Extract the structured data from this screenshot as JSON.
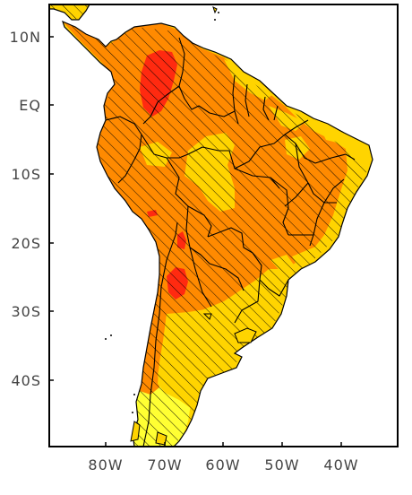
{
  "map": {
    "lat_labels": [
      "10N",
      "EQ",
      "10S",
      "20S",
      "30S",
      "40S"
    ],
    "lon_labels": [
      "80W",
      "70W",
      "60W",
      "50W",
      "40W"
    ],
    "colors": {
      "land_base": "#ffd400",
      "yellow_light": "#ffff33",
      "orange": "#ff8a00",
      "red": "#ff2a10",
      "coast": "#000000",
      "frame": "#000000",
      "hatch": "#000000"
    },
    "fill_classes": [
      "yellow-light",
      "yellow",
      "orange",
      "red"
    ],
    "hatching": "diagonal"
  }
}
